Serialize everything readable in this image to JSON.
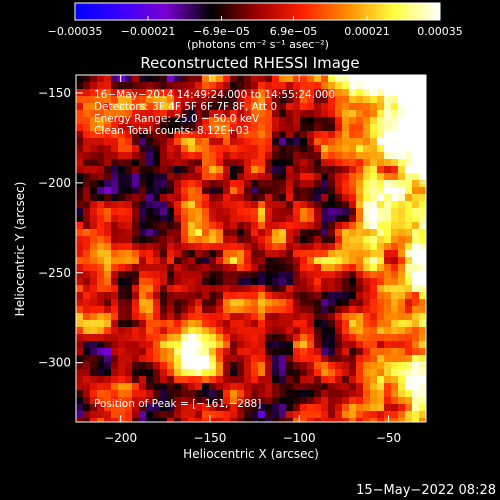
{
  "chart_data": {
    "type": "heatmap",
    "title": "Reconstructed RHESSI Image",
    "xlabel": "Heliocentric X (arcsec)",
    "ylabel": "Heliocentric Y (arcsec)",
    "xlim": [
      -225,
      -29
    ],
    "ylim": [
      -333,
      -140
    ],
    "x_ticks": [
      -200,
      -150,
      -100,
      -50
    ],
    "y_ticks": [
      -150,
      -200,
      -250,
      -300
    ],
    "x_tick_labels": [
      "−200",
      "−150",
      "−100",
      "−50"
    ],
    "y_tick_labels": [
      "−150",
      "−200",
      "−250",
      "−300"
    ],
    "colorbar": {
      "min": -0.00035,
      "max": 0.00035,
      "ticks": [
        -0.00035,
        -0.00021,
        -6.9e-05,
        6.9e-05,
        0.00021,
        0.00035
      ],
      "tick_labels": [
        "−0.00035",
        "−0.00021",
        "−6.9e−05",
        "6.9e−05",
        "0.00021",
        "0.00035"
      ],
      "unit_label": "(photons cm⁻² s⁻¹ asec⁻²)",
      "colors": [
        "#0000ff",
        "#3a00ff",
        "#7a00d0",
        "#000000",
        "#a00000",
        "#ff2000",
        "#ff9000",
        "#ffff40",
        "#ffffff"
      ]
    },
    "annotations": [
      "16−May−2014 14:49:24.000 to 14:55:24.000",
      "Detectors: 3F 4F 5F 6F 7F 8F, Att 0",
      "Energy Range: 25.0 − 50.0 keV",
      "Clean     Total counts: 8.12E+03"
    ],
    "peak_label": "Position of Peak = [−161,−288]",
    "peak": [
      -161,
      -288
    ],
    "grid": false
  },
  "footer": {
    "timestamp": "15−May−2022 08:28"
  }
}
